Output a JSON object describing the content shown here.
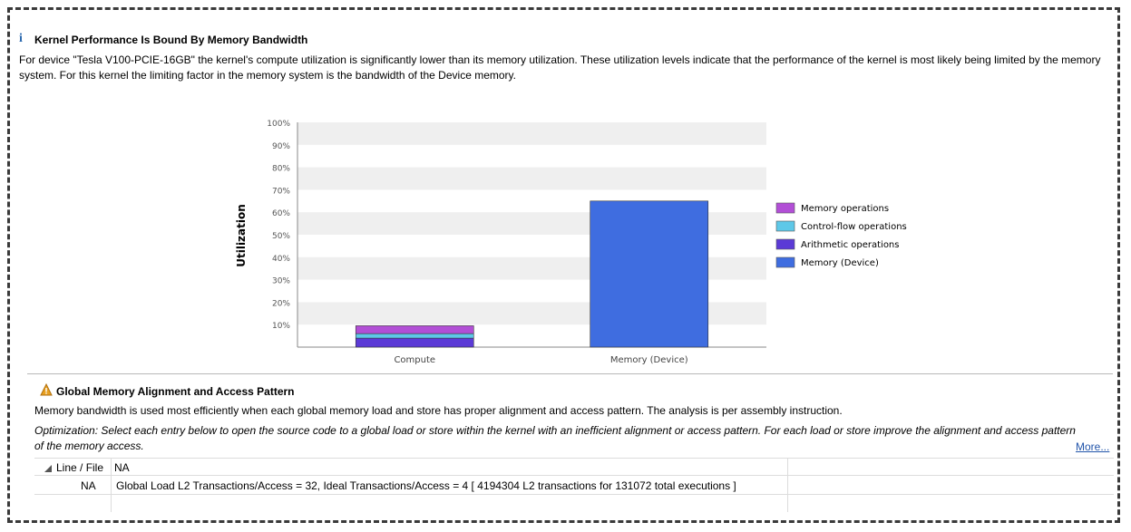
{
  "section1": {
    "title": "Kernel Performance Is Bound By Memory Bandwidth",
    "description": "For device \"Tesla V100-PCIE-16GB\" the kernel's compute utilization is significantly lower than its memory utilization. These utilization levels indicate that the performance of the kernel is most likely being limited by the memory system. For this kernel the limiting factor in the memory system is the bandwidth of the Device memory."
  },
  "chart_data": {
    "type": "bar",
    "stacked": true,
    "categories": [
      "Compute",
      "Memory (Device)"
    ],
    "ylabel": "Utilization",
    "ylim": [
      0,
      100
    ],
    "yticks": [
      "10%",
      "20%",
      "30%",
      "40%",
      "50%",
      "60%",
      "70%",
      "80%",
      "90%",
      "100%"
    ],
    "series": [
      {
        "name": "Arithmetic operations",
        "values": [
          4,
          0
        ],
        "color": "#5b3ad6"
      },
      {
        "name": "Control-flow operations",
        "values": [
          2,
          0
        ],
        "color": "#5ec8e8"
      },
      {
        "name": "Memory operations",
        "values": [
          3.5,
          0
        ],
        "color": "#b24fd6"
      },
      {
        "name": "Memory (Device)",
        "values": [
          0,
          65
        ],
        "color": "#3f6de0"
      }
    ],
    "legend": [
      "Memory operations",
      "Control-flow operations",
      "Arithmetic operations",
      "Memory (Device)"
    ],
    "legend_position": "right",
    "grid": "alternating bands"
  },
  "section2": {
    "title": "Global Memory Alignment and Access Pattern",
    "description": "Memory bandwidth is used most efficiently when each global memory load and store has proper alignment and access pattern. The analysis is per assembly instruction.",
    "optimization": "Optimization: Select each entry below to open the source code to a global load or store within the kernel with an inefficient alignment or access pattern. For each load or store improve the alignment and access pattern of the memory access.",
    "more_link": "More..."
  },
  "table": {
    "header_col1": "Line / File",
    "header_col2": "NA",
    "rows": [
      {
        "col1": "NA",
        "col2": "Global Load L2 Transactions/Access = 32, Ideal Transactions/Access = 4 [ 4194304 L2 transactions for 131072 total executions ]"
      }
    ]
  },
  "colors": {
    "info_icon": "#2e6bb0",
    "warning_icon": "#e8a020",
    "link": "#2255aa"
  }
}
